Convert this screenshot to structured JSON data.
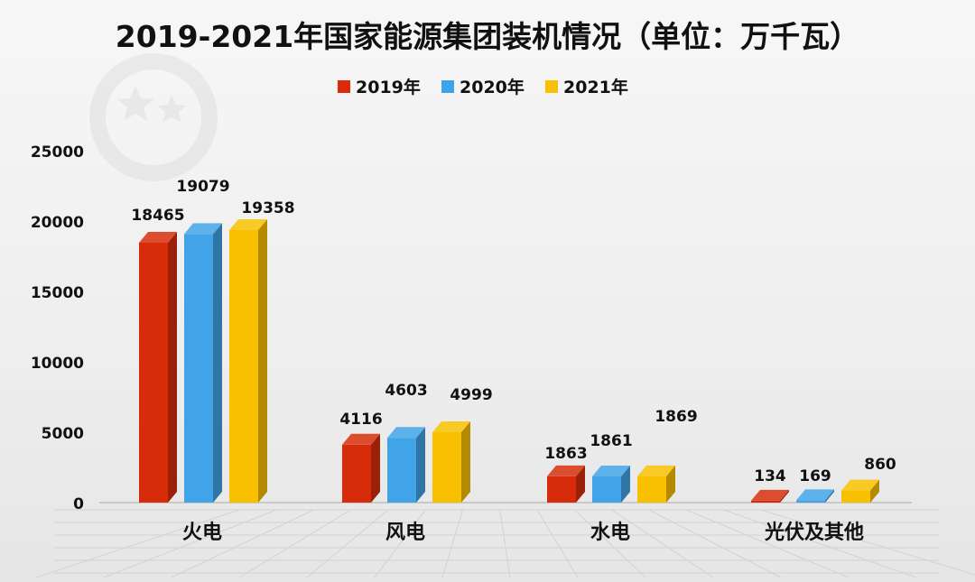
{
  "chart_data": {
    "type": "bar",
    "title": "2019-2021年国家能源集团装机情况（单位：万千瓦）",
    "xlabel": "",
    "ylabel": "",
    "categories": [
      "火电",
      "风电",
      "水电",
      "光伏及其他"
    ],
    "series": [
      {
        "name": "2019年",
        "values": [
          18465,
          4116,
          1863,
          134
        ],
        "color": "#d62c0a"
      },
      {
        "name": "2020年",
        "values": [
          19079,
          4603,
          1861,
          169
        ],
        "color": "#41a4e8"
      },
      {
        "name": "2021年",
        "values": [
          19358,
          4999,
          1869,
          860
        ],
        "color": "#f8c000"
      }
    ],
    "ylim": [
      0,
      25000
    ],
    "yticks": [
      0,
      5000,
      10000,
      15000,
      20000,
      25000
    ],
    "legend_position": "top-center",
    "grid": false,
    "style": "3d-bar"
  }
}
